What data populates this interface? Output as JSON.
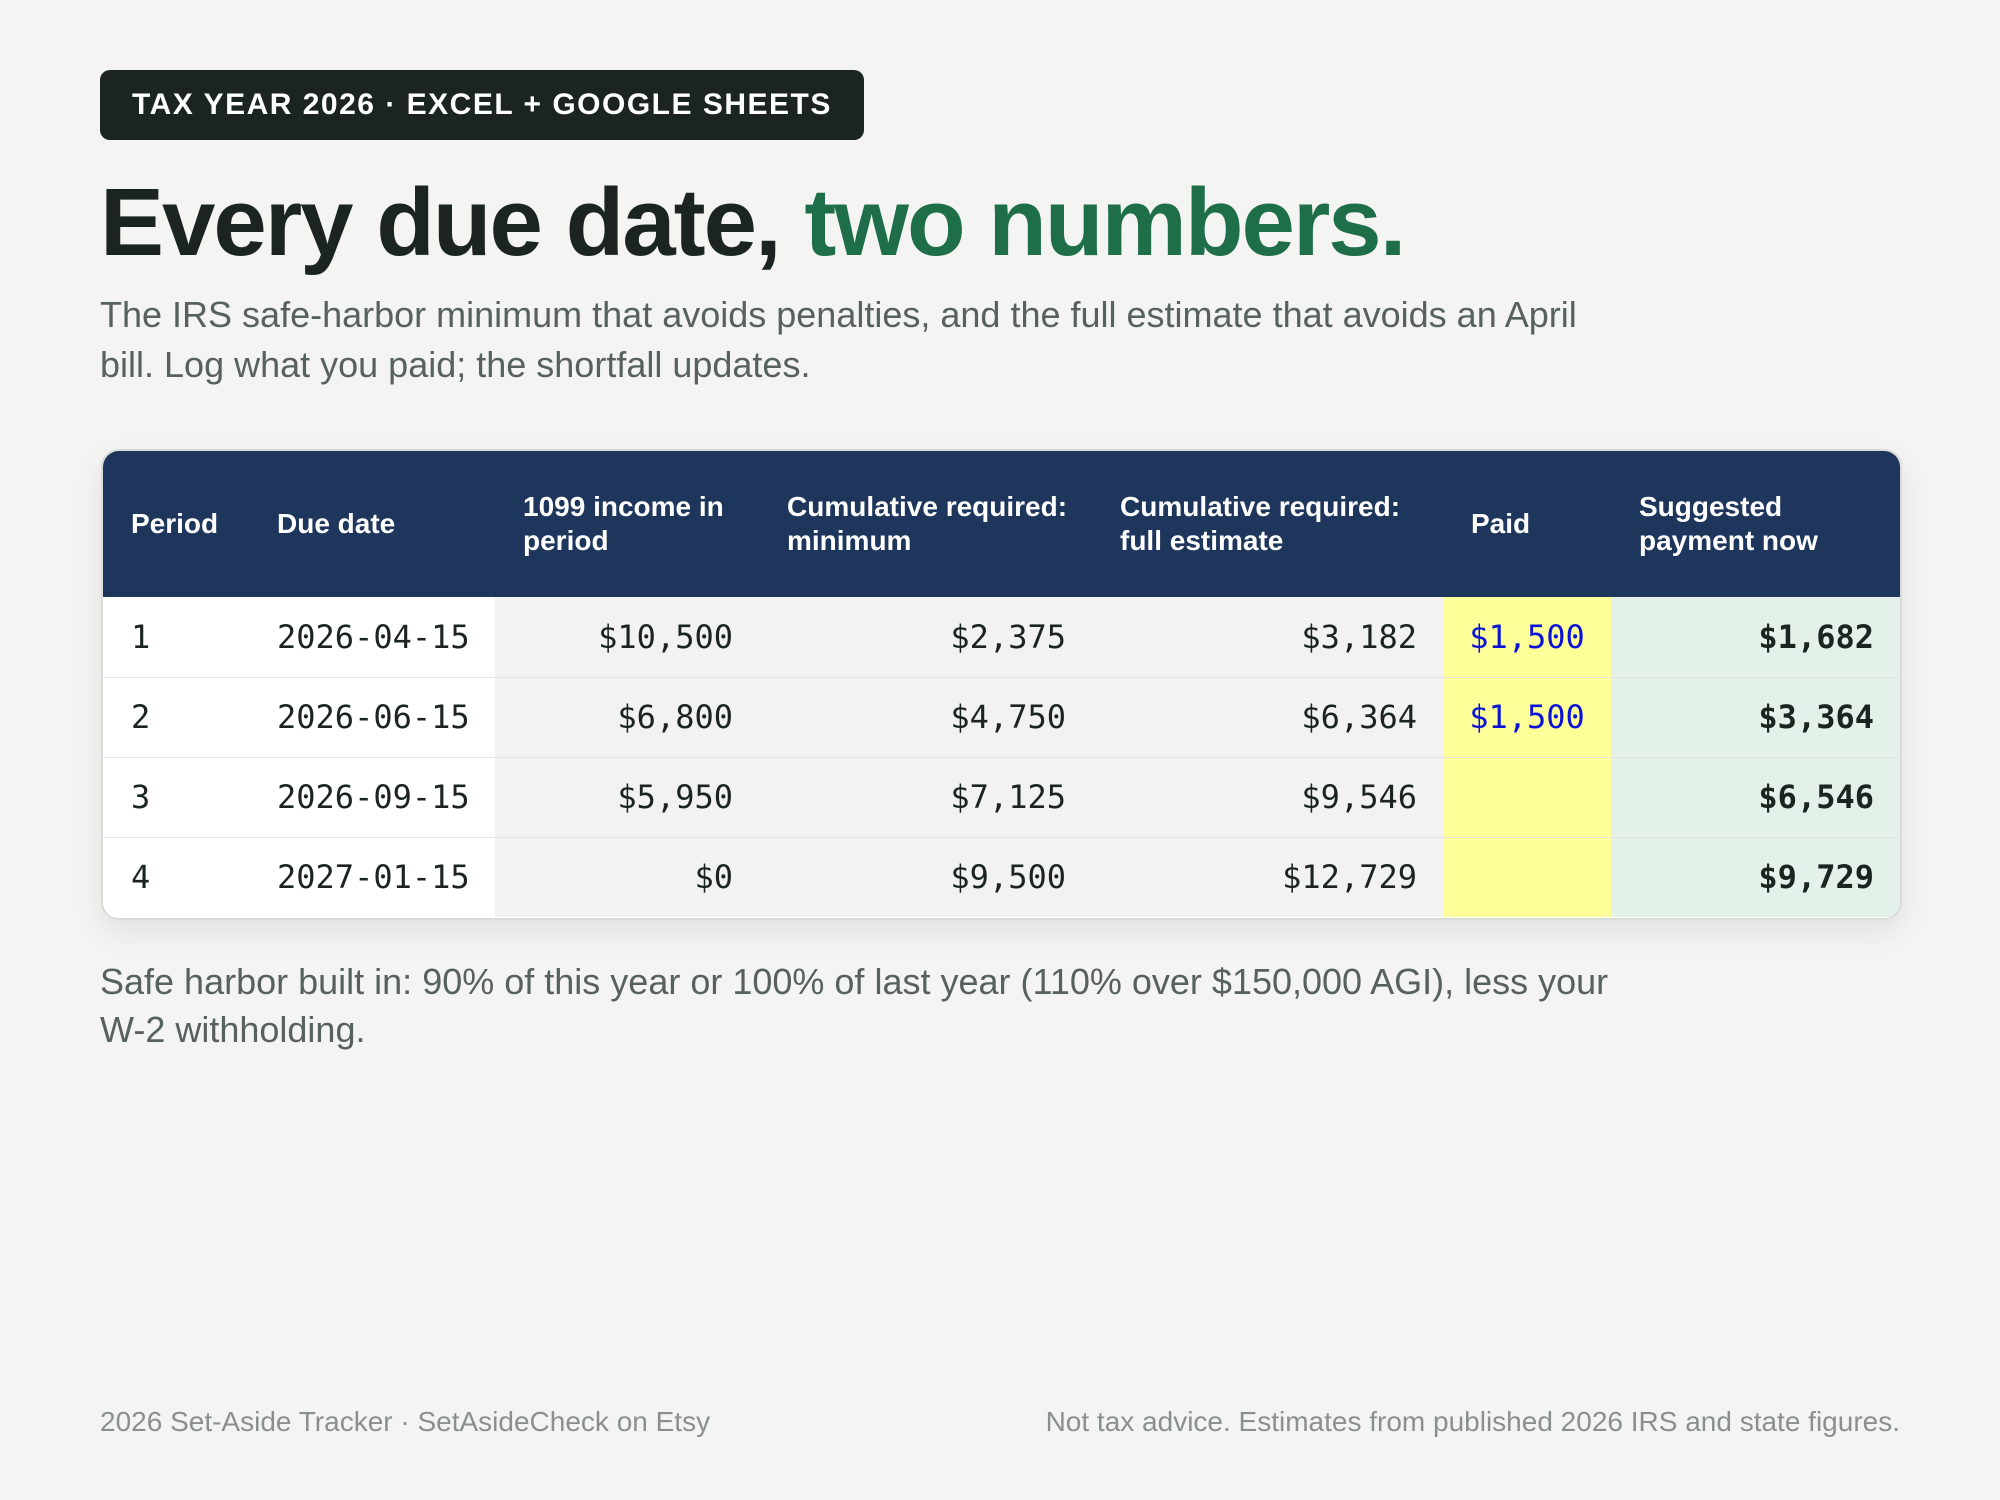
{
  "badge": "TAX YEAR 2026 · EXCEL + GOOGLE SHEETS",
  "headline": {
    "main": "Every due date, ",
    "accent": "two numbers."
  },
  "subtitle": "The IRS safe-harbor minimum that avoids penalties, and the full estimate that avoids an April bill. Log what you paid; the shortfall updates.",
  "table": {
    "headers": {
      "period": "Period",
      "due_date": "Due date",
      "income": "1099 income in period",
      "min": "Cumulative required: minimum",
      "full": "Cumulative required: full estimate",
      "paid": "Paid",
      "suggested": "Suggested payment now"
    },
    "rows": [
      {
        "period": "1",
        "due_date": "2026-04-15",
        "income": "$10,500",
        "min": "$2,375",
        "full": "$3,182",
        "paid": "$1,500",
        "suggested": "$1,682"
      },
      {
        "period": "2",
        "due_date": "2026-06-15",
        "income": "$6,800",
        "min": "$4,750",
        "full": "$6,364",
        "paid": "$1,500",
        "suggested": "$3,364"
      },
      {
        "period": "3",
        "due_date": "2026-09-15",
        "income": "$5,950",
        "min": "$7,125",
        "full": "$9,546",
        "paid": "",
        "suggested": "$6,546"
      },
      {
        "period": "4",
        "due_date": "2027-01-15",
        "income": "$0",
        "min": "$9,500",
        "full": "$12,729",
        "paid": "",
        "suggested": "$9,729"
      }
    ]
  },
  "footnote": "Safe harbor built in: 90% of this year or 100% of last year (110% over $150,000 AGI), less your W-2 withholding.",
  "footer": {
    "left": "2026 Set-Aside Tracker · SetAsideCheck on Etsy",
    "right": "Not tax advice. Estimates from published 2026 IRS and state figures."
  },
  "colors": {
    "accent": "#1e6e4a",
    "header_bg": "#1f365c",
    "paid_bg": "#ffff99",
    "paid_text": "#0a14d6",
    "suggested_bg": "#e3f1e8"
  }
}
